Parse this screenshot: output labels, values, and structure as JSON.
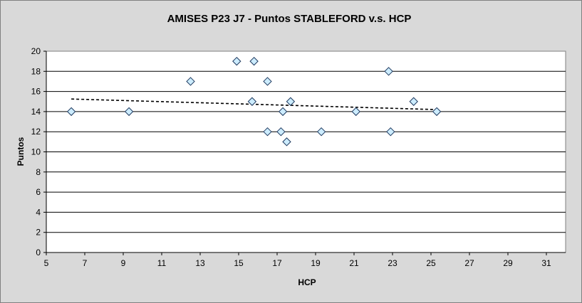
{
  "chart_data": {
    "type": "scatter",
    "title": "AMISES P23 J7 - Puntos STABLEFORD v.s. HCP",
    "xlabel": "HCP",
    "ylabel": "Puntos",
    "xlim": [
      5,
      32
    ],
    "ylim": [
      0,
      20
    ],
    "x_ticks": [
      5,
      7,
      9,
      11,
      13,
      15,
      17,
      19,
      21,
      23,
      25,
      27,
      29,
      31
    ],
    "y_ticks": [
      0,
      2,
      4,
      6,
      8,
      10,
      12,
      14,
      16,
      18,
      20
    ],
    "grid": "horizontal",
    "legend": "none",
    "colors": {
      "plot_area": "#ffffff",
      "chart_area": "#d9d9d9",
      "marker_fill": "#ccecff",
      "marker_stroke": "#1f3a5f",
      "trendline": "#000000"
    },
    "series": [
      {
        "marker": "diamond",
        "points": [
          {
            "x": 6.3,
            "y": 14
          },
          {
            "x": 9.3,
            "y": 14
          },
          {
            "x": 12.5,
            "y": 17
          },
          {
            "x": 14.9,
            "y": 19
          },
          {
            "x": 15.8,
            "y": 19
          },
          {
            "x": 15.7,
            "y": 15
          },
          {
            "x": 16.5,
            "y": 17
          },
          {
            "x": 16.5,
            "y": 12
          },
          {
            "x": 17.2,
            "y": 12
          },
          {
            "x": 17.3,
            "y": 14
          },
          {
            "x": 17.5,
            "y": 11
          },
          {
            "x": 17.7,
            "y": 15
          },
          {
            "x": 19.3,
            "y": 12
          },
          {
            "x": 21.1,
            "y": 14
          },
          {
            "x": 22.8,
            "y": 18
          },
          {
            "x": 22.9,
            "y": 12
          },
          {
            "x": 24.1,
            "y": 15
          },
          {
            "x": 25.3,
            "y": 14
          }
        ]
      }
    ],
    "trendline": {
      "type": "linear",
      "style": "dashed",
      "from": {
        "x": 6.3,
        "y": 15.25
      },
      "to": {
        "x": 25.3,
        "y": 14.2
      }
    }
  }
}
